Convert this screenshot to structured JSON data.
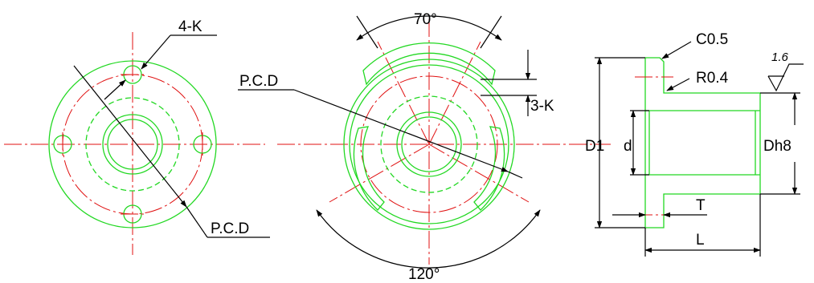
{
  "labels": {
    "front_holes": "4-K",
    "front_pcd": "P.C.D",
    "middle_angle_top": "70°",
    "middle_pcd": "P.C.D",
    "middle_slots": "3-K",
    "middle_angle_bottom": "120°",
    "side_chamfer": "C0.5",
    "side_radius": "R0.4",
    "side_roughness": "1.6",
    "side_d1": "D1",
    "side_d": "d",
    "side_dh8": "Dh8",
    "side_t": "T",
    "side_l": "L"
  },
  "colors": {
    "outline": "#22d822",
    "center_line": "#e01010",
    "dimension": "#000000"
  }
}
